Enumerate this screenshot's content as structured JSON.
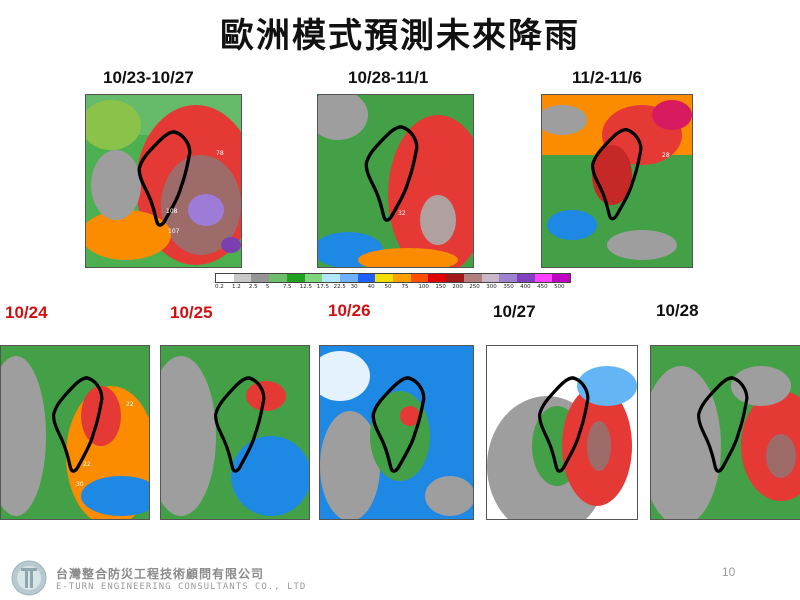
{
  "title": "歐洲模式預測未來降雨",
  "top_labels": [
    "10/23-10/27",
    "10/28-11/1",
    "11/2-11/6"
  ],
  "daily_labels": [
    "10/24",
    "10/25",
    "10/26",
    "10/27",
    "10/28"
  ],
  "colors": {
    "title": "#111111",
    "highlight_label": "#d01010",
    "normal_label": "#111111"
  },
  "scale": {
    "values": [
      "0.2",
      "1.2",
      "2.5",
      "5",
      "7.5",
      "12.5",
      "17.5",
      "22.5",
      "30",
      "40",
      "50",
      "75",
      "100",
      "150",
      "200",
      "250",
      "300",
      "350",
      "400",
      "450",
      "500"
    ],
    "colors": [
      "#ffffff",
      "#c8c8c8",
      "#969696",
      "#6fbe6f",
      "#1fa01f",
      "#7fd67f",
      "#b2e8ff",
      "#6fb0ff",
      "#2060ff",
      "#f4e000",
      "#ffa000",
      "#ff5000",
      "#e00000",
      "#a01818",
      "#b08080",
      "#c8b8c8",
      "#a080d0",
      "#8040c0",
      "#ff40ff",
      "#c000c0"
    ]
  },
  "map_annotations": {
    "m1": [
      "78",
      "108",
      "107"
    ],
    "m2": [
      "32"
    ],
    "m3": [
      "28"
    ],
    "d1": [
      "22",
      "22",
      "30"
    ]
  },
  "footer": {
    "company": "台灣整合防災工程技術顧問有限公司",
    "company_en": "E-TURN ENGINEERING CONSULTANTS CO., LTD",
    "page_number": "10"
  }
}
